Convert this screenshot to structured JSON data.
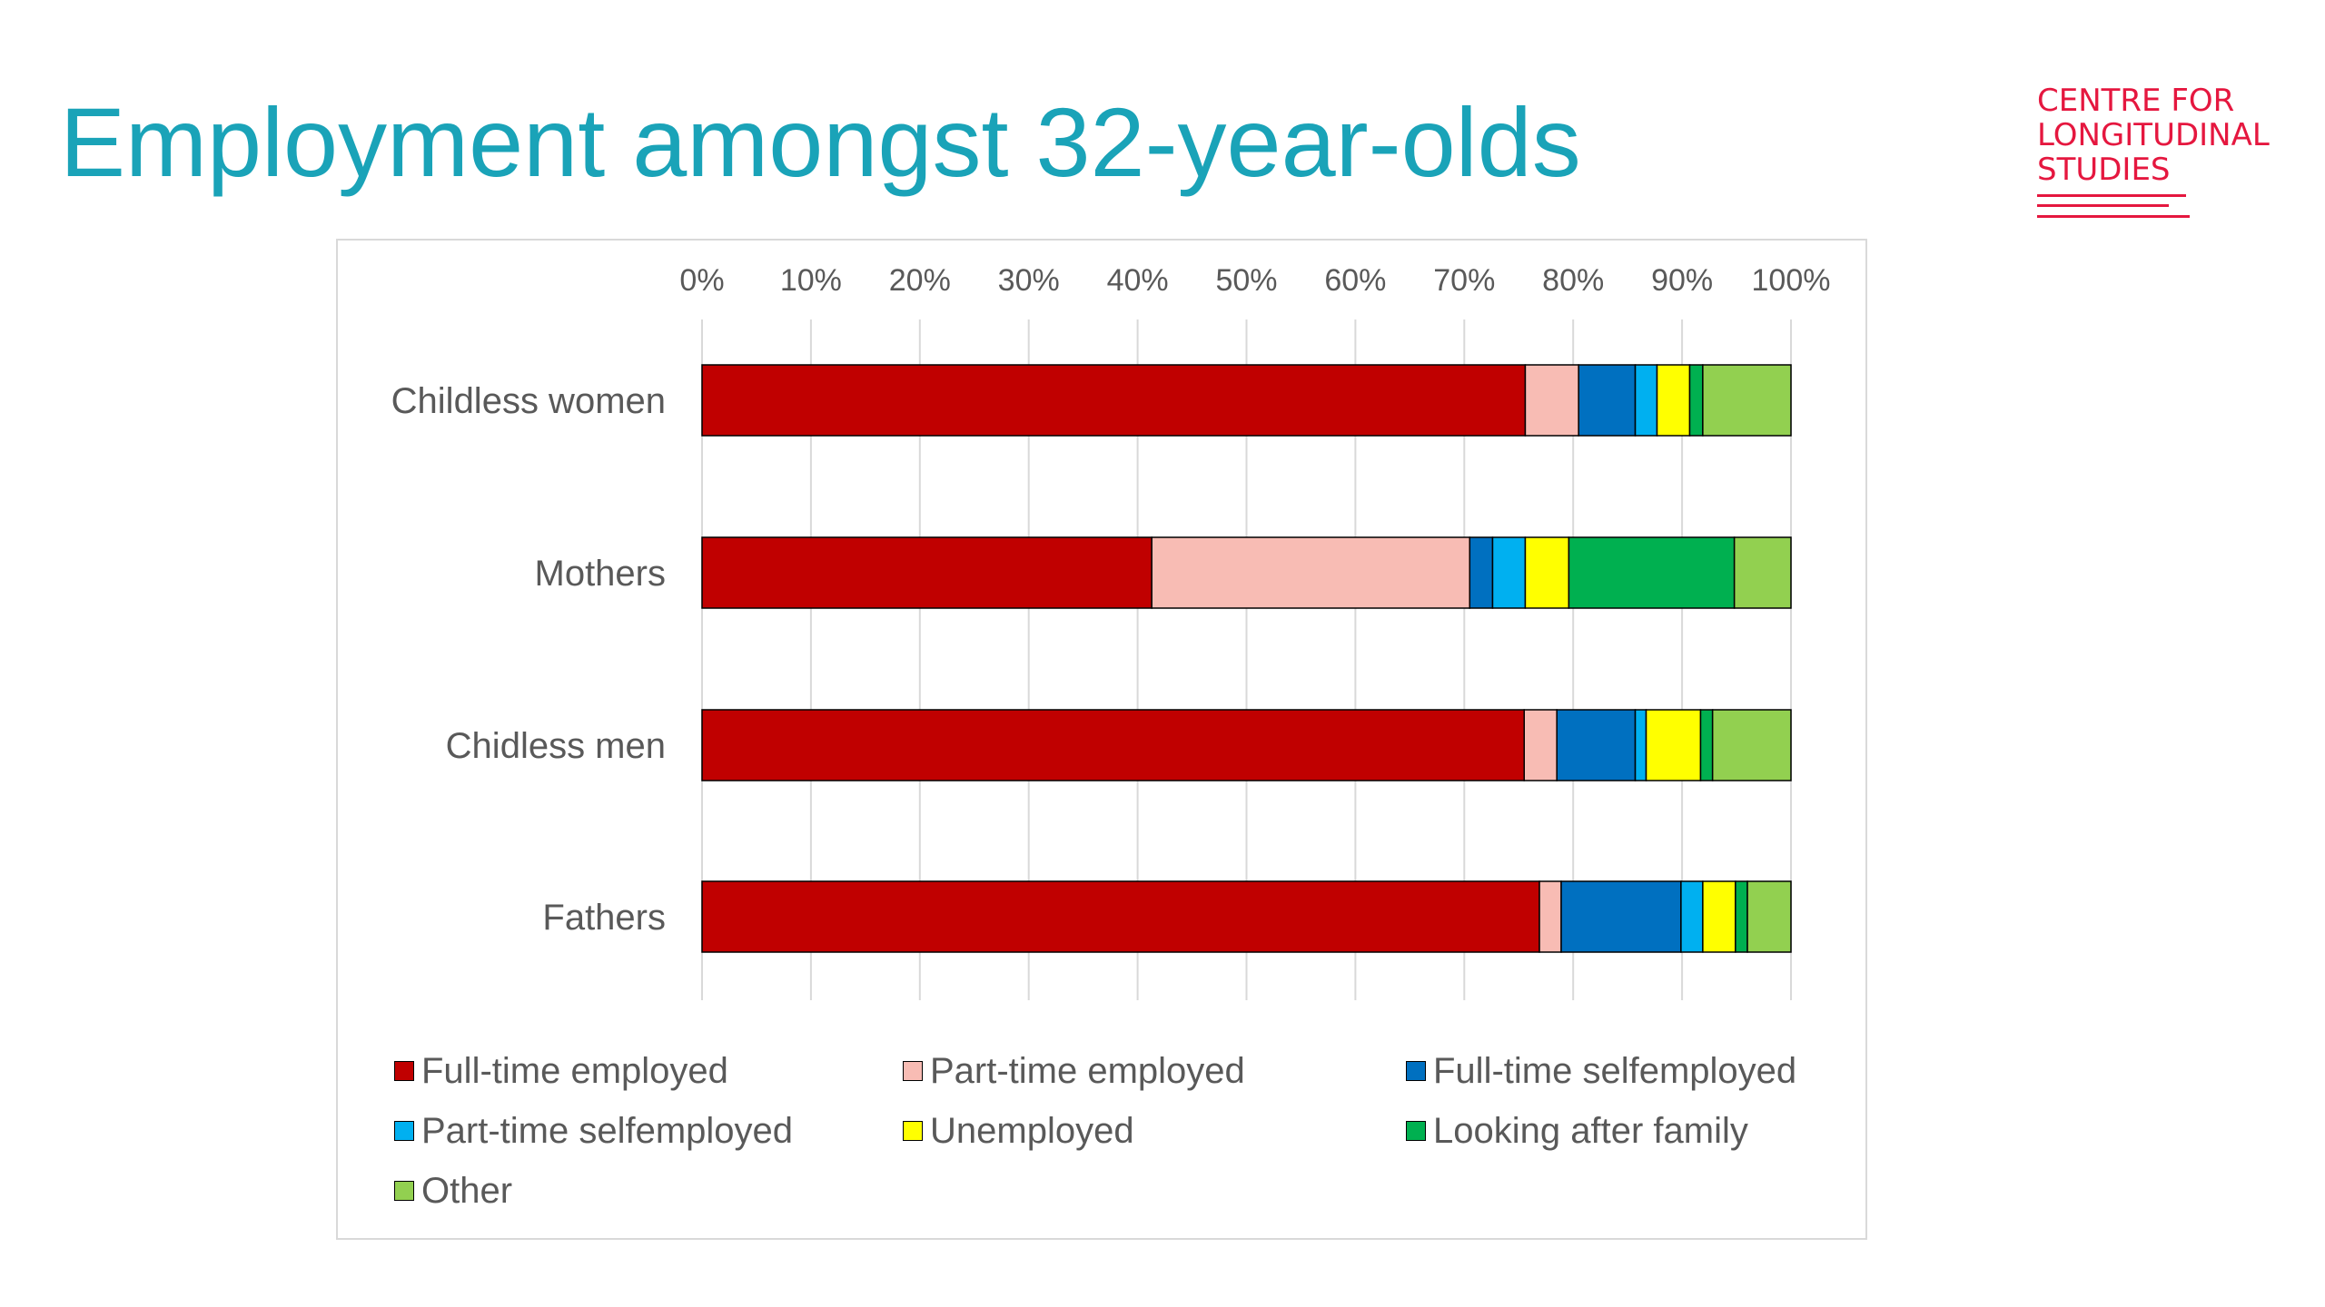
{
  "slide": {
    "title": "Employment amongst 32-year-olds",
    "title_color": "#1aa3b8"
  },
  "logo": {
    "lines": [
      "CENTRE FOR",
      "LONGITUDINAL",
      "STUDIES"
    ],
    "color": "#e5173f"
  },
  "chart_data": {
    "type": "bar",
    "orientation": "horizontal",
    "stacked": "percent",
    "title": "",
    "xlabel": "",
    "ylabel": "",
    "xlim": [
      0,
      100
    ],
    "x_ticks": [
      "0%",
      "10%",
      "20%",
      "30%",
      "40%",
      "50%",
      "60%",
      "70%",
      "80%",
      "90%",
      "100%"
    ],
    "grid": true,
    "legend_position": "bottom",
    "categories": [
      "Childless women",
      "Mothers",
      "Chidless men",
      "Fathers"
    ],
    "series": [
      {
        "name": "Full-time employed",
        "color": "#c00000",
        "values": [
          75.6,
          41.3,
          75.5,
          76.9
        ]
      },
      {
        "name": "Part-time employed",
        "color": "#f8bcb4",
        "values": [
          4.9,
          29.2,
          3.0,
          2.0
        ]
      },
      {
        "name": "Full-time selfemployed",
        "color": "#0070c0",
        "values": [
          5.2,
          2.1,
          7.2,
          11.0
        ]
      },
      {
        "name": "Part-time selfemployed",
        "color": "#00b0f0",
        "values": [
          2.0,
          3.0,
          1.0,
          2.0
        ]
      },
      {
        "name": "Unemployed",
        "color": "#ffff00",
        "values": [
          3.0,
          4.0,
          5.0,
          3.0
        ]
      },
      {
        "name": "Looking after family",
        "color": "#00b050",
        "values": [
          1.2,
          15.2,
          1.1,
          1.1
        ]
      },
      {
        "name": "Other",
        "color": "#92d050",
        "values": [
          8.1,
          5.2,
          7.2,
          4.0
        ]
      }
    ]
  }
}
